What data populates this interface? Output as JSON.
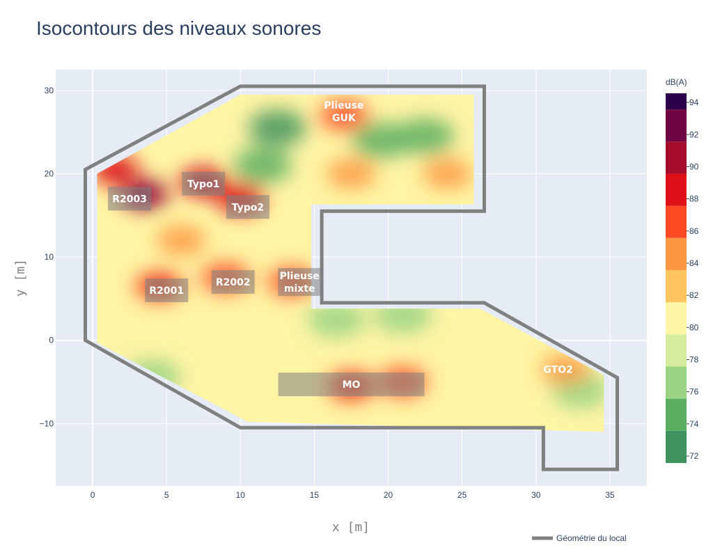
{
  "chart_data": {
    "type": "contour",
    "title": "Isocontours des niveaux sonores",
    "xlabel": "x [m]",
    "ylabel": "y [m]",
    "xlim": [
      -2.5,
      37.5
    ],
    "ylim": [
      -17.5,
      32.5
    ],
    "x_ticks": [
      0,
      5,
      10,
      15,
      20,
      25,
      30,
      35
    ],
    "y_ticks": [
      -10,
      0,
      10,
      20,
      30
    ],
    "colorbar": {
      "title": "dB(A)",
      "range": [
        72,
        95
      ],
      "ticks": [
        72,
        74,
        76,
        78,
        80,
        82,
        84,
        86,
        88,
        90,
        92,
        94
      ],
      "levels": [
        {
          "from": 72,
          "to": 74,
          "color": "#3f935e"
        },
        {
          "from": 74,
          "to": 76,
          "color": "#5aae61"
        },
        {
          "from": 76,
          "to": 78,
          "color": "#98d383"
        },
        {
          "from": 78,
          "to": 80,
          "color": "#d5ec9e"
        },
        {
          "from": 80,
          "to": 82,
          "color": "#fff5a5"
        },
        {
          "from": 82,
          "to": 84,
          "color": "#fec45e"
        },
        {
          "from": 84,
          "to": 86,
          "color": "#fd9640"
        },
        {
          "from": 86,
          "to": 88,
          "color": "#fc4a24"
        },
        {
          "from": 88,
          "to": 90,
          "color": "#de1018"
        },
        {
          "from": 90,
          "to": 92,
          "color": "#a50b2a"
        },
        {
          "from": 92,
          "to": 94,
          "color": "#6e0442"
        },
        {
          "from": 94,
          "to": 95,
          "color": "#2d004b"
        }
      ]
    },
    "geometry_outline": {
      "name": "Géométrie du local",
      "color": "#808080",
      "points": [
        [
          -0.5,
          0
        ],
        [
          -0.5,
          20.5
        ],
        [
          10,
          30.5
        ],
        [
          26.5,
          30.5
        ],
        [
          26.5,
          15.5
        ],
        [
          15.5,
          15.5
        ],
        [
          15.5,
          4.5
        ],
        [
          26.5,
          4.5
        ],
        [
          35.5,
          -4.5
        ],
        [
          35.5,
          -15.5
        ],
        [
          30.5,
          -15.5
        ],
        [
          30.5,
          -10.5
        ],
        [
          10,
          -10.5
        ],
        [
          -0.5,
          0
        ]
      ]
    },
    "hot_spots": [
      {
        "x": 3.5,
        "y": 17.5,
        "level": 91
      },
      {
        "x": 7.5,
        "y": 19.0,
        "level": 89
      },
      {
        "x": 10.0,
        "y": 17.0,
        "level": 88
      },
      {
        "x": 4.5,
        "y": 6.5,
        "level": 87
      },
      {
        "x": 9.0,
        "y": 7.5,
        "level": 86
      },
      {
        "x": 13.5,
        "y": 7.0,
        "level": 86
      },
      {
        "x": 17.5,
        "y": -5.5,
        "level": 87
      },
      {
        "x": 21.0,
        "y": -5.0,
        "level": 86
      },
      {
        "x": 32.0,
        "y": -3.5,
        "level": 85
      },
      {
        "x": 17.0,
        "y": 27.0,
        "level": 86
      },
      {
        "x": 17.5,
        "y": 20.0,
        "level": 85
      },
      {
        "x": 24.0,
        "y": 20.0,
        "level": 84
      },
      {
        "x": 1.5,
        "y": 20.5,
        "level": 88
      },
      {
        "x": 6.0,
        "y": 12.0,
        "level": 85
      }
    ],
    "cold_spots": [
      {
        "x": 12.5,
        "y": 25.5,
        "level": 73
      },
      {
        "x": 11.5,
        "y": 21.0,
        "level": 74
      },
      {
        "x": 19.5,
        "y": 24.0,
        "level": 75
      },
      {
        "x": 22.5,
        "y": 24.5,
        "level": 75
      },
      {
        "x": 21.0,
        "y": 3.0,
        "level": 76
      },
      {
        "x": 16.5,
        "y": 2.5,
        "level": 77
      },
      {
        "x": 33.0,
        "y": -6.0,
        "level": 76
      },
      {
        "x": 4.0,
        "y": -4.5,
        "level": 76
      }
    ],
    "machines": [
      {
        "label": "Plieuse GUK",
        "lines": [
          "Plieuse",
          "GUK"
        ],
        "x": 17.0,
        "y": 27.5,
        "box": false
      },
      {
        "label": "Typo1",
        "lines": [
          "Typo1"
        ],
        "x": 7.5,
        "y": 18.8,
        "box": true
      },
      {
        "label": "R2003",
        "lines": [
          "R2003"
        ],
        "x": 2.5,
        "y": 17.0,
        "box": true
      },
      {
        "label": "Typo2",
        "lines": [
          "Typo2"
        ],
        "x": 10.5,
        "y": 16.0,
        "box": true
      },
      {
        "label": "Plieuse mixte",
        "lines": [
          "Plieuse",
          "mixte"
        ],
        "x": 14.0,
        "y": 7.0,
        "box": true
      },
      {
        "label": "R2002",
        "lines": [
          "R2002"
        ],
        "x": 9.5,
        "y": 7.0,
        "box": true
      },
      {
        "label": "R2001",
        "lines": [
          "R2001"
        ],
        "x": 5.0,
        "y": 6.0,
        "box": true
      },
      {
        "label": "MO",
        "lines": [
          "MO"
        ],
        "x": 17.5,
        "y": -5.3,
        "box": true
      },
      {
        "label": "GTO2",
        "lines": [
          "GTO2"
        ],
        "x": 31.5,
        "y": -3.5,
        "box": false
      }
    ],
    "legend": {
      "entries": [
        "Géométrie du local"
      ],
      "placement": "bottom-right"
    },
    "grid": true
  }
}
